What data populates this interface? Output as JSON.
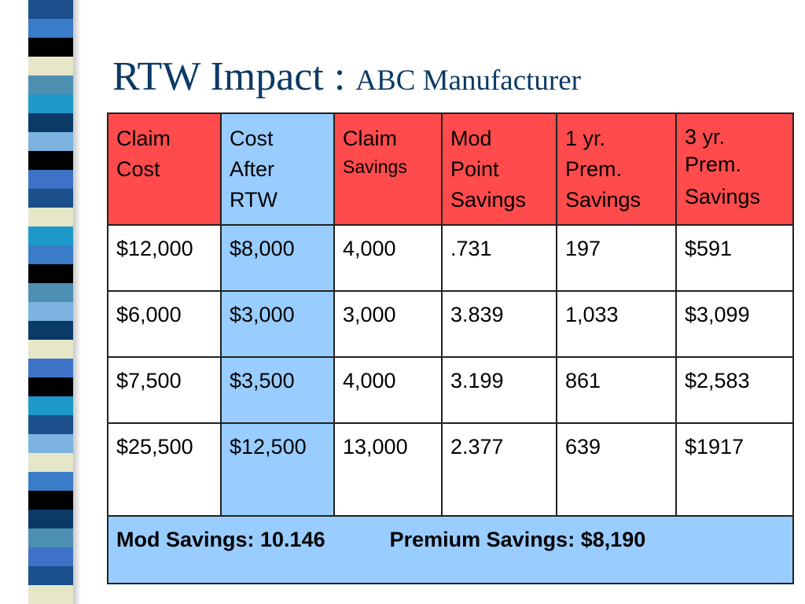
{
  "title": {
    "main": "RTW Impact : ",
    "sub": "ABC Manufacturer"
  },
  "colors": {
    "title": "#0b3a66",
    "header_red": "#ff4b4b",
    "highlight_blue": "#99ccff",
    "stripes": [
      "#1a4f8c",
      "#3a7cc7",
      "#000000",
      "#e6e6c8",
      "#4d8fb0",
      "#1e98c9",
      "#0b3a66",
      "#7cb3e0",
      "#3d72c6"
    ]
  },
  "table": {
    "header": {
      "claim_cost": [
        "Claim",
        "Cost"
      ],
      "cost_after_rtw": [
        "Cost",
        "After",
        "RTW"
      ],
      "claim_savings": [
        "Claim",
        "Savings"
      ],
      "mod_point_savings": [
        "Mod",
        "Point",
        "Savings"
      ],
      "one_yr_prem_savings": [
        "1 yr.",
        "Prem.",
        "Savings"
      ],
      "three_yr_prem_savings": [
        "3 yr.",
        "Prem.",
        "Savings"
      ]
    },
    "rows": [
      [
        "$12,000",
        "$8,000",
        "4,000",
        ".731",
        "197",
        "$591"
      ],
      [
        "$6,000",
        "$3,000",
        "3,000",
        "3.839",
        "1,033",
        "$3,099"
      ],
      [
        "$7,500",
        "$3,500",
        "4,000",
        "3.199",
        "861",
        "$2,583"
      ],
      [
        "$25,500",
        "$12,500",
        "13,000",
        "2.377",
        "639",
        "$1917"
      ]
    ],
    "footer": {
      "mod_savings": "Mod Savings: 10.146",
      "premium_savings": "Premium Savings: $8,190"
    }
  }
}
